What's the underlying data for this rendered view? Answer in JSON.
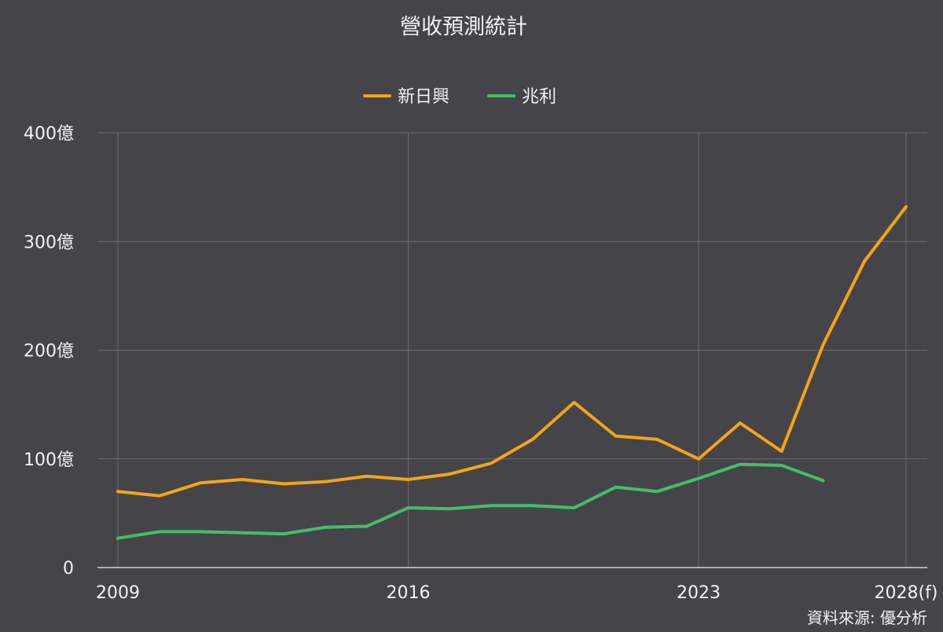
{
  "chart_data": {
    "type": "line",
    "title": "營收預測統計",
    "source": "資料來源: 優分析",
    "x": [
      "2009",
      "2010",
      "2011",
      "2012",
      "2013",
      "2014",
      "2015",
      "2016",
      "2017",
      "2018",
      "2019",
      "2020",
      "2021",
      "2022",
      "2023",
      "2024",
      "2025",
      "2026(f)",
      "2027(f)",
      "2028(f)"
    ],
    "x_tick_labels": [
      "2009",
      "2016",
      "2023",
      "2028(f)"
    ],
    "y_ticks": [
      0,
      100,
      200,
      300,
      400
    ],
    "y_tick_labels": [
      "0",
      "100億",
      "200億",
      "300億",
      "400億"
    ],
    "ylim": [
      0,
      400
    ],
    "grid": true,
    "legend_position": "top-center",
    "series": [
      {
        "name": "新日興",
        "color": "#f2a516",
        "values": [
          70,
          66,
          78,
          81,
          77,
          79,
          84,
          81,
          86,
          96,
          118,
          152,
          121,
          118,
          100,
          133,
          107,
          205,
          282,
          332
        ]
      },
      {
        "name": "兆利",
        "color": "#47bb6a",
        "values": [
          27,
          33,
          33,
          32,
          31,
          37,
          38,
          55,
          54,
          57,
          57,
          55,
          74,
          70,
          82,
          95,
          94,
          80,
          null,
          null
        ]
      }
    ]
  }
}
